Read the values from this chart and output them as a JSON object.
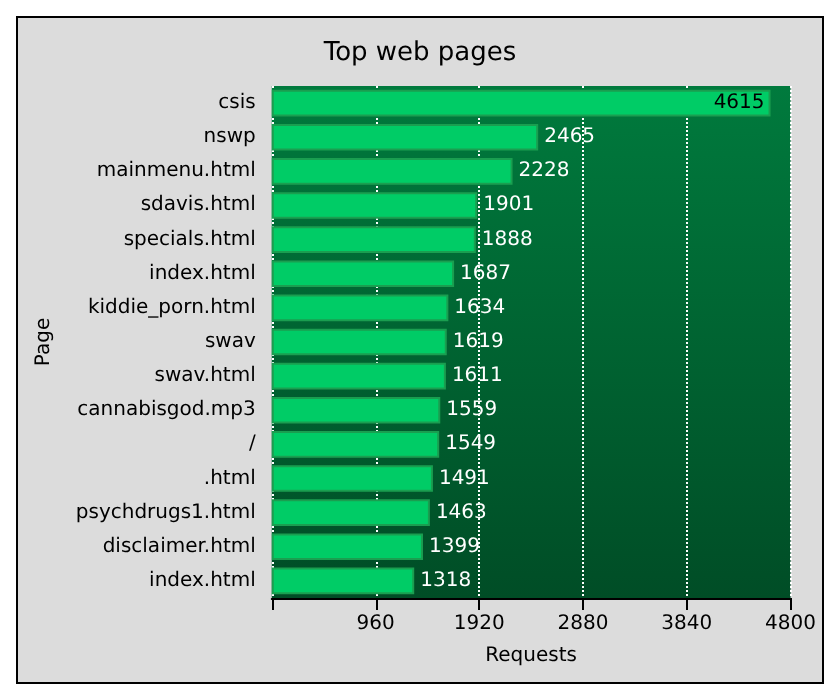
{
  "chart_data": {
    "type": "bar",
    "orientation": "horizontal",
    "title": "Top web pages",
    "xlabel": "Requests",
    "ylabel": "Page",
    "categories": [
      "csis",
      "nswp",
      "mainmenu.html",
      "sdavis.html",
      "specials.html",
      "index.html",
      "kiddie_porn.html",
      "swav",
      "swav.html",
      "cannabisgod.mp3",
      "/",
      ".html",
      "psychdrugs1.html",
      "disclaimer.html",
      "index.html"
    ],
    "values": [
      4615,
      2465,
      2228,
      1901,
      1888,
      1687,
      1634,
      1619,
      1611,
      1559,
      1549,
      1491,
      1463,
      1399,
      1318
    ],
    "color": "#00cc66",
    "xlim": [
      0,
      4800
    ],
    "xticks": [
      {
        "value": 0,
        "label": null
      },
      960,
      1920,
      2880,
      3840,
      4800
    ],
    "grid": "x",
    "data_labels": true
  }
}
